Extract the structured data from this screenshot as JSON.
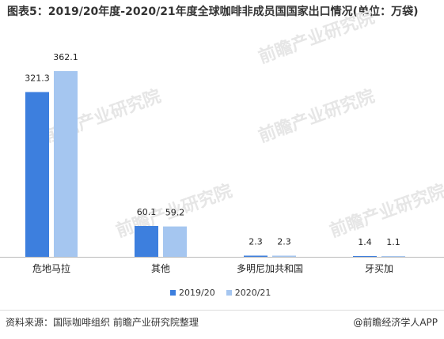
{
  "title": "图表5：2019/20年度-2020/21年度全球咖啡非成员国国家出口情况(单位：万袋)",
  "source": "资料来源：国际咖啡组织 前瞻产业研究院整理",
  "credit": "@前瞻经济学人APP",
  "watermark": "前瞻产业研究院",
  "colors": {
    "s1": "#3d7fde",
    "s2": "#a5c6f0",
    "axis": "#bbbbbb"
  },
  "chart_data": {
    "type": "bar",
    "categories": [
      "危地马拉",
      "其他",
      "多明尼加共和国",
      "牙买加"
    ],
    "series": [
      {
        "name": "2019/20",
        "values": [
          321.3,
          60.1,
          2.3,
          1.4
        ]
      },
      {
        "name": "2020/21",
        "values": [
          362.1,
          59.2,
          2.3,
          1.1
        ]
      }
    ],
    "legend_position": "bottom"
  }
}
